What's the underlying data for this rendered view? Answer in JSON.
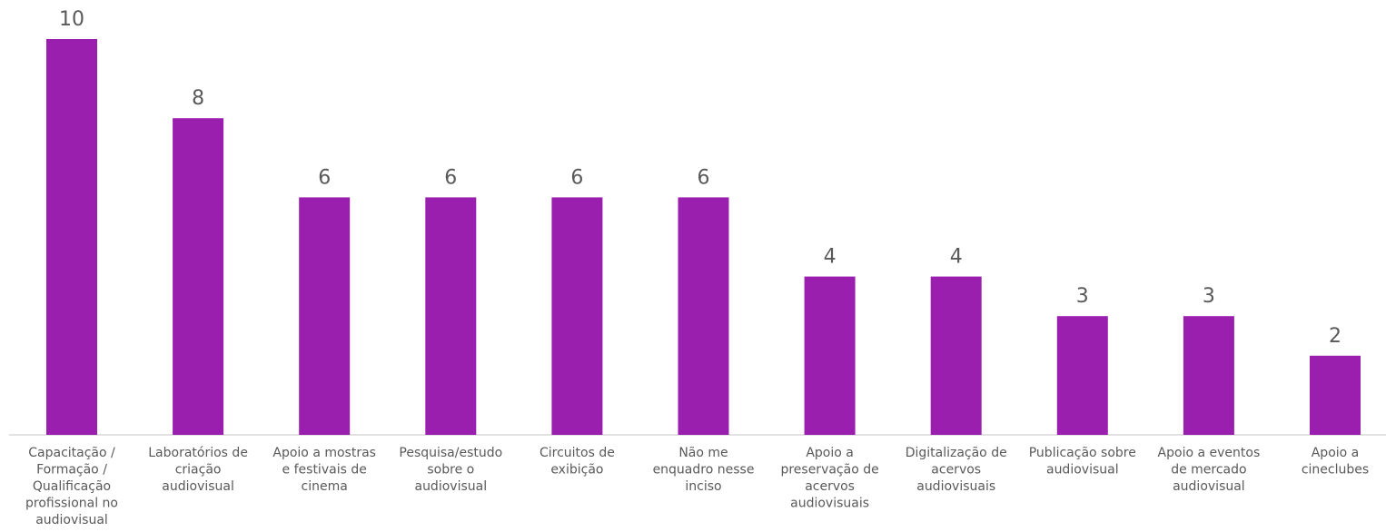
{
  "chart_data": {
    "type": "bar",
    "bar_color": "#9B1FAE",
    "axis_color": "#D9D9D9",
    "text_color": "#595959",
    "ylim": [
      0,
      10
    ],
    "categories": [
      [
        "Capacitação /",
        "Formação /",
        "Qualificação",
        "profissional no",
        "audiovisual"
      ],
      [
        "Laboratórios de",
        "criação",
        "audiovisual"
      ],
      [
        "Apoio a mostras",
        "e festivais de",
        "cinema"
      ],
      [
        "Pesquisa/estudo",
        "sobre o",
        "audiovisual"
      ],
      [
        "Circuitos de",
        "exibição"
      ],
      [
        "Não me",
        "enquadro nesse",
        "inciso"
      ],
      [
        "Apoio a",
        "preservação de",
        "acervos",
        "audiovisuais"
      ],
      [
        "Digitalização de",
        "acervos",
        "audiovisuais"
      ],
      [
        "Publicação sobre",
        "audiovisual"
      ],
      [
        "Apoio a eventos",
        "de mercado",
        "audiovisual"
      ],
      [
        "Apoio a",
        "cineclubes"
      ]
    ],
    "values": [
      10,
      8,
      6,
      6,
      6,
      6,
      4,
      4,
      3,
      3,
      2
    ]
  }
}
